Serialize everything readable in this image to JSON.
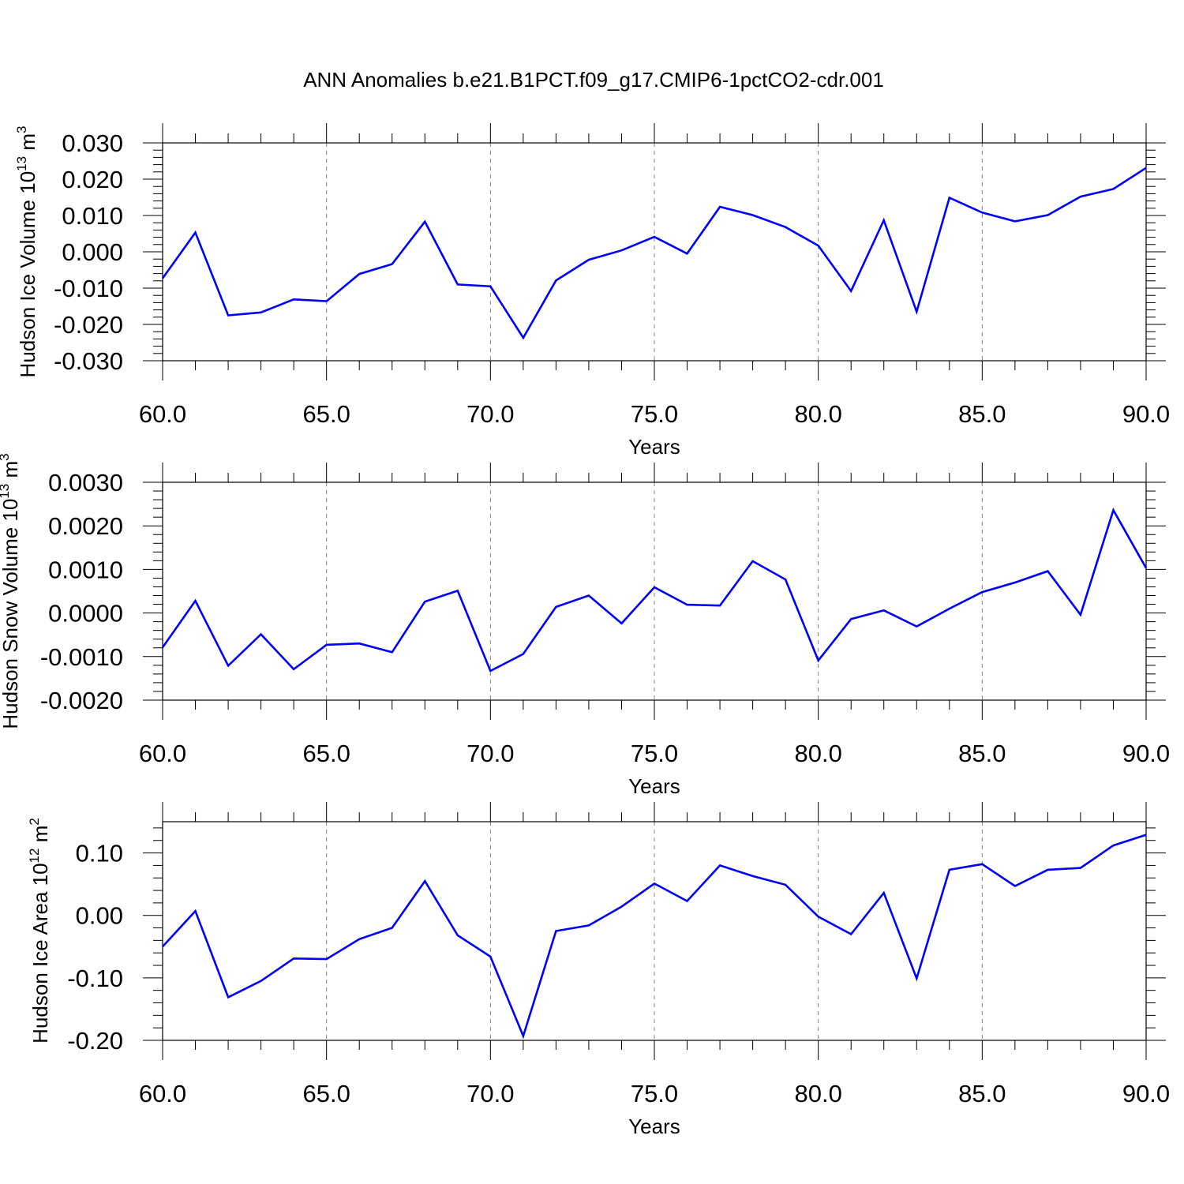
{
  "figure": {
    "title": "ANN Anomalies b.e21.B1PCT.f09_g17.CMIP6-1pctCO2-cdr.001"
  },
  "chart_data": [
    {
      "type": "line",
      "xlabel": "Years",
      "ylabel": {
        "prefix": "Hudson Ice Volume 10",
        "exp": "13",
        "unit": " m",
        "unit_exp": "3"
      },
      "xlim": [
        60,
        90
      ],
      "ylim": [
        -0.03,
        0.03
      ],
      "x_ticks": [
        "60.0",
        "65.0",
        "70.0",
        "75.0",
        "80.0",
        "85.0",
        "90.0"
      ],
      "y_ticks": [
        {
          "v": -0.03,
          "label": "-0.030"
        },
        {
          "v": -0.02,
          "label": "-0.020"
        },
        {
          "v": -0.01,
          "label": "-0.010"
        },
        {
          "v": 0.0,
          "label": "0.000"
        },
        {
          "v": 0.01,
          "label": "0.010"
        },
        {
          "v": 0.02,
          "label": "0.020"
        },
        {
          "v": 0.03,
          "label": "0.030"
        }
      ],
      "grid": "vertical dashed",
      "line_color": "#0000ff",
      "x": [
        60,
        61,
        62,
        63,
        64,
        65,
        66,
        67,
        68,
        69,
        70,
        71,
        72,
        73,
        74,
        75,
        76,
        77,
        78,
        79,
        80,
        81,
        82,
        83,
        84,
        85,
        86,
        87,
        88,
        89,
        90
      ],
      "y": [
        -0.0073,
        0.0053,
        -0.0175,
        -0.0167,
        -0.0131,
        -0.0136,
        -0.0061,
        -0.0034,
        0.0083,
        -0.009,
        -0.0095,
        -0.0237,
        -0.0079,
        -0.0022,
        0.0004,
        0.0041,
        -0.0005,
        0.0124,
        0.0101,
        0.0068,
        0.0017,
        -0.0108,
        0.0087,
        -0.0165,
        0.0149,
        0.0108,
        0.0084,
        0.0101,
        0.0152,
        0.0173,
        0.0231
      ]
    },
    {
      "type": "line",
      "xlabel": "Years",
      "ylabel": {
        "prefix": "Hudson Snow Volume 10",
        "exp": "13",
        "unit": " m",
        "unit_exp": "3"
      },
      "xlim": [
        60,
        90
      ],
      "ylim": [
        -0.002,
        0.003
      ],
      "x_ticks": [
        "60.0",
        "65.0",
        "70.0",
        "75.0",
        "80.0",
        "85.0",
        "90.0"
      ],
      "y_ticks": [
        {
          "v": -0.002,
          "label": "-0.0020"
        },
        {
          "v": -0.001,
          "label": "-0.0010"
        },
        {
          "v": 0.0,
          "label": "0.0000"
        },
        {
          "v": 0.001,
          "label": "0.0010"
        },
        {
          "v": 0.002,
          "label": "0.0020"
        },
        {
          "v": 0.003,
          "label": "0.0030"
        }
      ],
      "grid": "vertical dashed",
      "line_color": "#0000ff",
      "x": [
        60,
        61,
        62,
        63,
        64,
        65,
        66,
        67,
        68,
        69,
        70,
        71,
        72,
        73,
        74,
        75,
        76,
        77,
        78,
        79,
        80,
        81,
        82,
        83,
        84,
        85,
        86,
        87,
        88,
        89,
        90
      ],
      "y": [
        -0.00079,
        0.00028,
        -0.00121,
        -0.00049,
        -0.00129,
        -0.00073,
        -0.0007,
        -0.0009,
        0.00026,
        0.00051,
        -0.00133,
        -0.00094,
        0.00014,
        0.0004,
        -0.00024,
        0.00059,
        0.00019,
        0.00017,
        0.00119,
        0.00077,
        -0.00109,
        -0.00014,
        6e-05,
        -0.00031,
        0.0001,
        0.00048,
        0.0007,
        0.00096,
        -4e-05,
        0.00236,
        0.00103
      ]
    },
    {
      "type": "line",
      "xlabel": "Years",
      "ylabel": {
        "prefix": "Hudson Ice Area 10",
        "exp": "12",
        "unit": " m",
        "unit_exp": "2"
      },
      "xlim": [
        60,
        90
      ],
      "ylim": [
        -0.2,
        0.15
      ],
      "x_ticks": [
        "60.0",
        "65.0",
        "70.0",
        "75.0",
        "80.0",
        "85.0",
        "90.0"
      ],
      "y_ticks": [
        {
          "v": -0.2,
          "label": "-0.20"
        },
        {
          "v": -0.1,
          "label": "-0.10"
        },
        {
          "v": 0.0,
          "label": "0.00"
        },
        {
          "v": 0.1,
          "label": "0.10"
        }
      ],
      "grid": "vertical dashed",
      "line_color": "#0000ff",
      "x": [
        60,
        61,
        62,
        63,
        64,
        65,
        66,
        67,
        68,
        69,
        70,
        71,
        72,
        73,
        74,
        75,
        76,
        77,
        78,
        79,
        80,
        81,
        82,
        83,
        84,
        85,
        86,
        87,
        88,
        89,
        90
      ],
      "y": [
        -0.05,
        0.007,
        -0.131,
        -0.105,
        -0.069,
        -0.07,
        -0.038,
        -0.02,
        0.055,
        -0.032,
        -0.066,
        -0.193,
        -0.025,
        -0.016,
        0.014,
        0.051,
        0.023,
        0.08,
        0.063,
        0.049,
        -0.002,
        -0.03,
        0.036,
        -0.101,
        0.073,
        0.082,
        0.047,
        0.073,
        0.076,
        0.112,
        0.129
      ]
    }
  ]
}
